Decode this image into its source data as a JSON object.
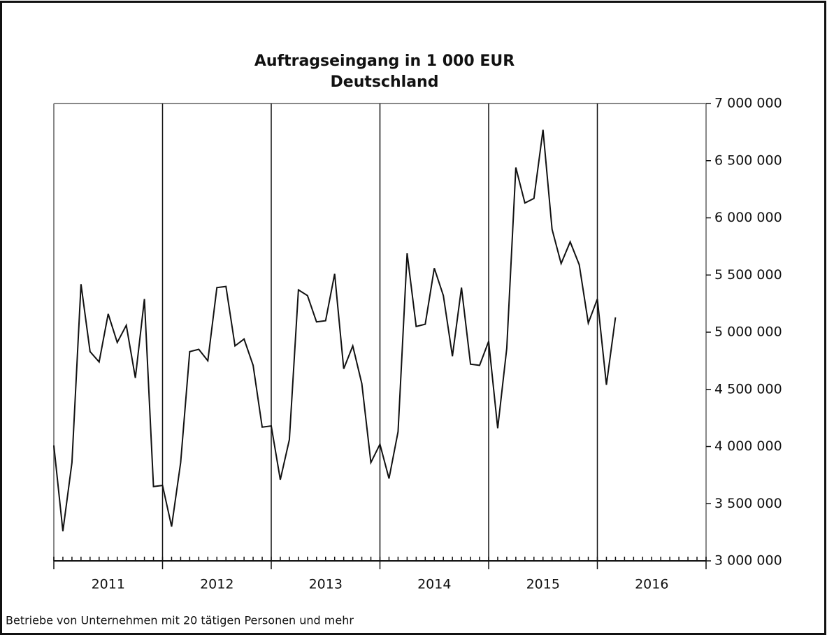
{
  "chart_data": {
    "type": "line",
    "title": "Auftragseingang  in  1 000 EUR",
    "subtitle": "Deutschland",
    "note": "Betriebe von Unternehmen mit 20 tätigen Personen und mehr",
    "year_labels": [
      "2011",
      "2012",
      "2013",
      "2014",
      "2015",
      "2016"
    ],
    "series": [
      {
        "color": "#111111",
        "values": [
          4010000,
          3260000,
          3860000,
          5420000,
          4830000,
          4740000,
          5160000,
          4910000,
          5060000,
          4600000,
          5290000,
          3650000,
          3660000,
          3300000,
          3860000,
          4830000,
          4850000,
          4750000,
          5390000,
          5400000,
          4880000,
          4940000,
          4710000,
          4170000,
          4180000,
          3710000,
          4060000,
          5370000,
          5320000,
          5090000,
          5100000,
          5510000,
          4680000,
          4880000,
          4550000,
          3860000,
          4020000,
          3720000,
          4130000,
          5690000,
          5050000,
          5070000,
          5560000,
          5320000,
          4790000,
          5390000,
          4720000,
          4710000,
          4920000,
          4160000,
          4860000,
          6440000,
          6130000,
          6170000,
          6770000,
          5900000,
          5600000,
          5790000,
          5590000,
          5080000,
          5290000,
          4540000,
          5130000
        ]
      }
    ],
    "ylim": [
      3000000,
      7000000
    ],
    "yticks": [
      {
        "value": 3000000,
        "label": "3 000 000"
      },
      {
        "value": 3500000,
        "label": "3 500 000"
      },
      {
        "value": 4000000,
        "label": "4 000 000"
      },
      {
        "value": 4500000,
        "label": "4 500 000"
      },
      {
        "value": 5000000,
        "label": "5 000 000"
      },
      {
        "value": 5500000,
        "label": "5 500 000"
      },
      {
        "value": 6000000,
        "label": "6 000 000"
      },
      {
        "value": 6500000,
        "label": "6 500 000"
      },
      {
        "value": 7000000,
        "label": "7 000 000"
      }
    ],
    "y_axis_side": "right"
  }
}
